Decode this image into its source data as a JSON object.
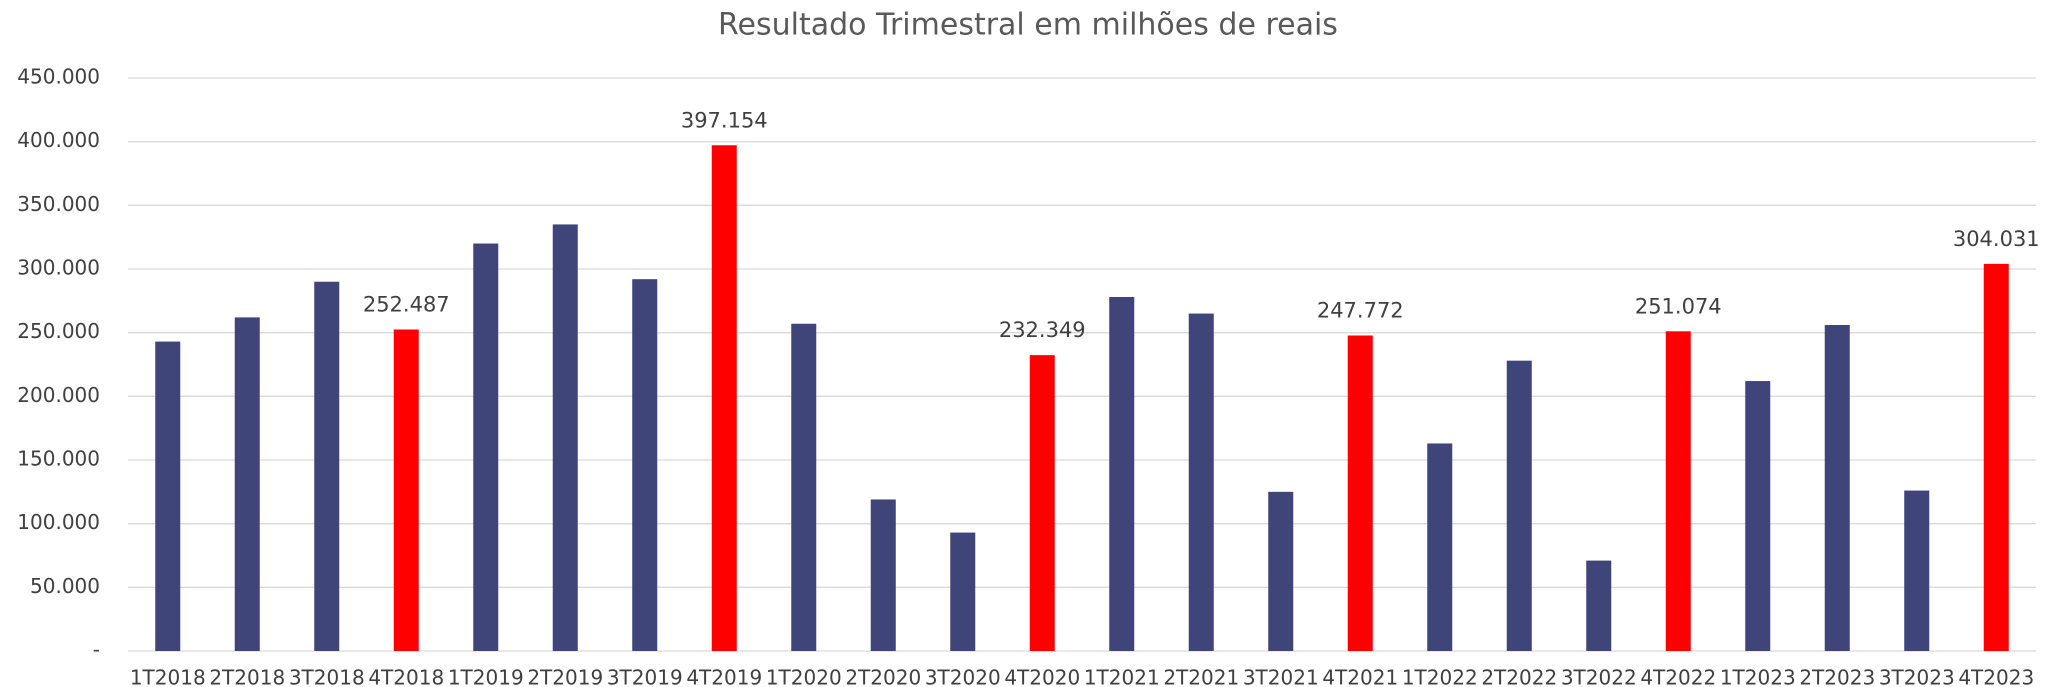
{
  "chart_data": {
    "type": "bar",
    "title": "Resultado Trimestral em milhões de reais",
    "categories": [
      "1T2018",
      "2T2018",
      "3T2018",
      "4T2018",
      "1T2019",
      "2T2019",
      "3T2019",
      "4T2019",
      "1T2020",
      "2T2020",
      "3T2020",
      "4T2020",
      "1T2021",
      "2T2021",
      "3T2021",
      "4T2021",
      "1T2022",
      "2T2022",
      "3T2022",
      "4T2022",
      "1T2023",
      "2T2023",
      "3T2023",
      "4T2023"
    ],
    "values": [
      243000,
      262000,
      290000,
      252487,
      320000,
      335000,
      292000,
      397154,
      257000,
      119000,
      93000,
      232349,
      278000,
      265000,
      125000,
      247772,
      163000,
      228000,
      71000,
      251074,
      212000,
      256000,
      126000,
      304031
    ],
    "value_labels": [
      null,
      null,
      null,
      "252.487",
      null,
      null,
      null,
      "397.154",
      null,
      null,
      null,
      "232.349",
      null,
      null,
      null,
      "247.772",
      null,
      null,
      null,
      "251.074",
      null,
      null,
      null,
      "304.031"
    ],
    "colors": [
      "#3f4479",
      "#3f4479",
      "#3f4479",
      "#ff0000",
      "#3f4479",
      "#3f4479",
      "#3f4479",
      "#ff0000",
      "#3f4479",
      "#3f4479",
      "#3f4479",
      "#ff0000",
      "#3f4479",
      "#3f4479",
      "#3f4479",
      "#ff0000",
      "#3f4479",
      "#3f4479",
      "#3f4479",
      "#ff0000",
      "#3f4479",
      "#3f4479",
      "#3f4479",
      "#ff0000"
    ],
    "ylim": [
      0,
      450000
    ],
    "yticks": [
      {
        "value": 0,
        "label": "-"
      },
      {
        "value": 50000,
        "label": "50.000"
      },
      {
        "value": 100000,
        "label": "100.000"
      },
      {
        "value": 150000,
        "label": "150.000"
      },
      {
        "value": 200000,
        "label": "200.000"
      },
      {
        "value": 250000,
        "label": "250.000"
      },
      {
        "value": 300000,
        "label": "300.000"
      },
      {
        "value": 350000,
        "label": "350.000"
      },
      {
        "value": 400000,
        "label": "400.000"
      },
      {
        "value": 450000,
        "label": "450.000"
      }
    ],
    "grid": true
  }
}
